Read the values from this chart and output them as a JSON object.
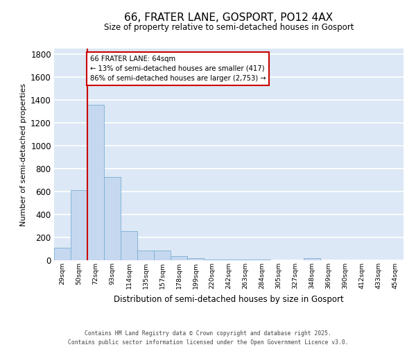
{
  "title": "66, FRATER LANE, GOSPORT, PO12 4AX",
  "subtitle": "Size of property relative to semi-detached houses in Gosport",
  "xlabel": "Distribution of semi-detached houses by size in Gosport",
  "ylabel": "Number of semi-detached properties",
  "categories": [
    "29sqm",
    "50sqm",
    "72sqm",
    "93sqm",
    "114sqm",
    "135sqm",
    "157sqm",
    "178sqm",
    "199sqm",
    "220sqm",
    "242sqm",
    "263sqm",
    "284sqm",
    "305sqm",
    "327sqm",
    "348sqm",
    "369sqm",
    "390sqm",
    "412sqm",
    "433sqm",
    "454sqm"
  ],
  "values": [
    110,
    615,
    1360,
    725,
    255,
    85,
    85,
    35,
    18,
    5,
    5,
    5,
    5,
    0,
    0,
    18,
    0,
    0,
    0,
    0,
    0
  ],
  "bar_color": "#c5d8f0",
  "bar_edge_color": "#7baed4",
  "bg_color": "#dce8f5",
  "grid_color": "#ffffff",
  "property_size": "64sqm",
  "property_name": "66 FRATER LANE",
  "pct_smaller": 13,
  "count_smaller": 417,
  "pct_larger": 86,
  "count_larger": 2753,
  "annotation_box_color": "#cc0000",
  "prop_line_index": 2.0,
  "ylim": [
    0,
    1850
  ],
  "yticks": [
    0,
    200,
    400,
    600,
    800,
    1000,
    1200,
    1400,
    1600,
    1800
  ],
  "footer_line1": "Contains HM Land Registry data © Crown copyright and database right 2025.",
  "footer_line2": "Contains public sector information licensed under the Open Government Licence v3.0."
}
